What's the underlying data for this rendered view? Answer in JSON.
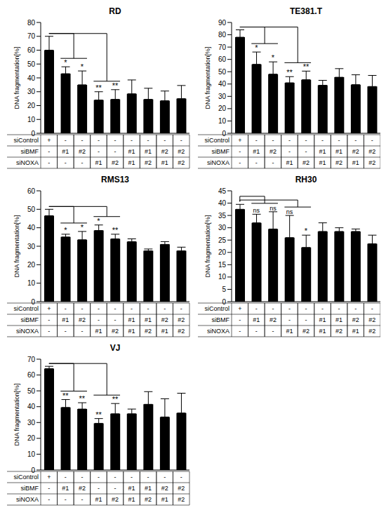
{
  "chart_data": [
    {
      "type": "bar",
      "title": "RD",
      "y_label": "DNA fragmentation[%]",
      "categories": [
        null,
        null,
        null,
        null,
        null,
        null,
        null,
        null,
        null
      ],
      "values": [
        60,
        43,
        35,
        24,
        24.5,
        28.5,
        24.5,
        23.5,
        25
      ],
      "errors": [
        10,
        5,
        10,
        6,
        7,
        10,
        8,
        7,
        9.5
      ],
      "color": "#000000",
      "ylim": [
        0,
        80
      ],
      "yticks": [
        0,
        10,
        20,
        30,
        40,
        50,
        60,
        70,
        80
      ],
      "grid": false,
      "x_table": [
        {
          "label": "siControl",
          "cells": [
            "+",
            "-",
            "-",
            "-",
            "-",
            "-",
            "-",
            "-",
            "-"
          ]
        },
        {
          "label": "siBMF",
          "cells": [
            "-",
            "#1",
            "#2",
            "-",
            "-",
            "#1",
            "#1",
            "#2",
            "#2"
          ]
        },
        {
          "label": "siNOXA",
          "cells": [
            "-",
            "-",
            "-",
            "#1",
            "#2",
            "#1",
            "#2",
            "#1",
            "#2"
          ]
        }
      ],
      "significance": [
        {
          "index": 1,
          "text": "*"
        },
        {
          "index": 2,
          "text": "*"
        },
        {
          "index": 3,
          "text": "**"
        },
        {
          "index": 4,
          "text": "**"
        }
      ],
      "comparisons": [
        {
          "reference": 0,
          "group": [
            1,
            2
          ]
        },
        {
          "reference": 0,
          "group": [
            3,
            4
          ]
        }
      ]
    },
    {
      "type": "bar",
      "title": "TE381.T",
      "y_label": "DNA fragmentation[%]",
      "categories": [
        null,
        null,
        null,
        null,
        null,
        null,
        null,
        null,
        null
      ],
      "values": [
        78,
        56,
        48,
        41,
        43.5,
        39,
        45.5,
        39.5,
        38
      ],
      "errors": [
        6,
        10,
        10,
        5,
        7,
        4,
        7,
        8,
        9
      ],
      "color": "#000000",
      "ylim": [
        0,
        90
      ],
      "yticks": [
        0,
        10,
        20,
        30,
        40,
        50,
        60,
        70,
        80,
        90
      ],
      "grid": false,
      "x_table": [
        {
          "label": "siControl",
          "cells": [
            "+",
            "-",
            "-",
            "-",
            "-",
            "-",
            "-",
            "-",
            "-"
          ]
        },
        {
          "label": "siBMF",
          "cells": [
            "-",
            "#1",
            "#2",
            "-",
            "-",
            "#1",
            "#1",
            "#2",
            "#2"
          ]
        },
        {
          "label": "siNOXA",
          "cells": [
            "-",
            "-",
            "-",
            "#1",
            "#2",
            "#1",
            "#2",
            "#1",
            "#2"
          ]
        }
      ],
      "significance": [
        {
          "index": 1,
          "text": "*"
        },
        {
          "index": 2,
          "text": "*"
        },
        {
          "index": 3,
          "text": "**"
        },
        {
          "index": 4,
          "text": "**"
        }
      ],
      "comparisons": [
        {
          "reference": 0,
          "group": [
            1,
            2
          ]
        },
        {
          "reference": 0,
          "group": [
            3,
            4
          ]
        }
      ]
    },
    {
      "type": "bar",
      "title": "RMS13",
      "y_label": "DNA fragmentation[%]",
      "categories": [
        null,
        null,
        null,
        null,
        null,
        null,
        null,
        null,
        null
      ],
      "values": [
        46.5,
        35,
        33.5,
        38.5,
        34,
        32.5,
        27.5,
        31,
        27.5
      ],
      "errors": [
        3.5,
        1.5,
        4.5,
        3,
        2.5,
        1.5,
        1,
        1.5,
        2
      ],
      "color": "#000000",
      "ylim": [
        0,
        60
      ],
      "yticks": [
        0,
        10,
        20,
        30,
        40,
        50,
        60
      ],
      "grid": false,
      "x_table": [
        {
          "label": "siControl",
          "cells": [
            "+",
            "-",
            "-",
            "-",
            "-",
            "-",
            "-",
            "-",
            "-"
          ]
        },
        {
          "label": "siBMF",
          "cells": [
            "-",
            "#1",
            "#2",
            "-",
            "-",
            "#1",
            "#1",
            "#2",
            "#2"
          ]
        },
        {
          "label": "siNOXA",
          "cells": [
            "-",
            "-",
            "-",
            "#1",
            "#2",
            "#1",
            "#2",
            "#1",
            "#2"
          ]
        }
      ],
      "significance": [
        {
          "index": 1,
          "text": "*"
        },
        {
          "index": 2,
          "text": "*"
        },
        {
          "index": 3,
          "text": "*"
        },
        {
          "index": 4,
          "text": "**"
        }
      ],
      "comparisons": [
        {
          "reference": 0,
          "group": [
            1,
            2
          ]
        },
        {
          "reference": 0,
          "group": [
            3,
            4
          ]
        }
      ]
    },
    {
      "type": "bar",
      "title": "RH30",
      "y_label": "DNA fragmentation[%]",
      "categories": [
        null,
        null,
        null,
        null,
        null,
        null,
        null,
        null,
        null
      ],
      "values": [
        37.5,
        32,
        29.5,
        26,
        22,
        28.5,
        28.5,
        28.5,
        23.5
      ],
      "errors": [
        2,
        3.5,
        7,
        9,
        5,
        3.5,
        1.5,
        1,
        3.5
      ],
      "color": "#000000",
      "ylim": [
        0,
        45
      ],
      "yticks": [
        0,
        5,
        10,
        15,
        20,
        25,
        30,
        35,
        40,
        45
      ],
      "grid": false,
      "x_table": [
        {
          "label": "siControl",
          "cells": [
            "+",
            "-",
            "-",
            "-",
            "-",
            "-",
            "-",
            "-",
            "-"
          ]
        },
        {
          "label": "siBMF",
          "cells": [
            "-",
            "#1",
            "#2",
            "-",
            "-",
            "#1",
            "#1",
            "#2",
            "#2"
          ]
        },
        {
          "label": "siNOXA",
          "cells": [
            "-",
            "-",
            "-",
            "#1",
            "#2",
            "#1",
            "#2",
            "#1",
            "#2"
          ]
        }
      ],
      "significance": [
        {
          "index": 1,
          "text": "ns"
        },
        {
          "index": 2,
          "text": "ns"
        },
        {
          "index": 3,
          "text": "ns"
        },
        {
          "index": 4,
          "text": "*"
        }
      ],
      "comparisons": [
        {
          "reference": 0,
          "group": [
            1,
            2
          ]
        },
        {
          "reference": 0,
          "group": [
            3,
            4
          ]
        }
      ]
    },
    {
      "type": "bar",
      "title": "VJ",
      "y_label": "DNA fragmentation[%]",
      "categories": [
        null,
        null,
        null,
        null,
        null,
        null,
        null,
        null,
        null
      ],
      "values": [
        64,
        39.5,
        38.5,
        29.5,
        35.5,
        35.5,
        41.5,
        33.5,
        36
      ],
      "errors": [
        1.5,
        5,
        4,
        3,
        6.5,
        3,
        8,
        11.5,
        12.5
      ],
      "color": "#000000",
      "ylim": [
        0,
        70
      ],
      "yticks": [
        0,
        10,
        20,
        30,
        40,
        50,
        60,
        70
      ],
      "grid": false,
      "x_table": [
        {
          "label": "siControl",
          "cells": [
            "+",
            "-",
            "-",
            "-",
            "-",
            "-",
            "-",
            "-",
            "-"
          ]
        },
        {
          "label": "siBMF",
          "cells": [
            "-",
            "#1",
            "#2",
            "-",
            "-",
            "#1",
            "#1",
            "#2",
            "#2"
          ]
        },
        {
          "label": "siNOXA",
          "cells": [
            "-",
            "-",
            "-",
            "#1",
            "#2",
            "#1",
            "#2",
            "#1",
            "#2"
          ]
        }
      ],
      "significance": [
        {
          "index": 1,
          "text": "**"
        },
        {
          "index": 2,
          "text": "**"
        },
        {
          "index": 3,
          "text": "**"
        },
        {
          "index": 4,
          "text": "**"
        }
      ],
      "comparisons": [
        {
          "reference": 0,
          "group": [
            1,
            2
          ]
        },
        {
          "reference": 0,
          "group": [
            3,
            4
          ]
        }
      ]
    }
  ]
}
